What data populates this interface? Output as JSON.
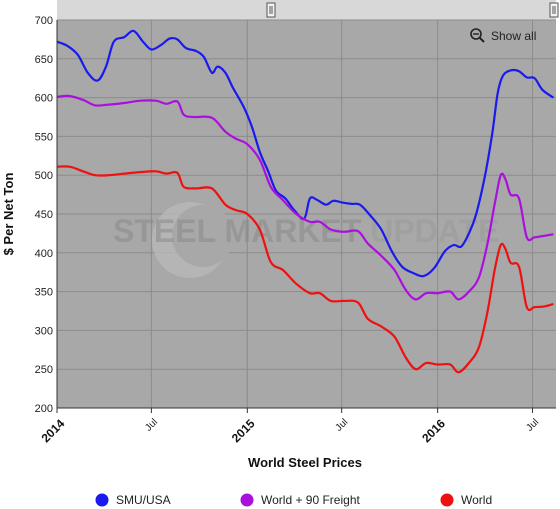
{
  "chart_data": {
    "type": "line",
    "title": "",
    "xlabel": "World Steel Prices",
    "ylabel": "$ Per Net Ton",
    "ylim": [
      200,
      700
    ],
    "yticks": [
      200,
      250,
      300,
      350,
      400,
      450,
      500,
      550,
      600,
      650,
      700
    ],
    "xlim": [
      "2014-01-01",
      "2016-08-15"
    ],
    "xticks": [
      {
        "date": "2014-01-01",
        "label": "2014",
        "major": true
      },
      {
        "date": "2014-07-01",
        "label": "Jul",
        "major": false
      },
      {
        "date": "2015-01-01",
        "label": "2015",
        "major": true
      },
      {
        "date": "2015-07-01",
        "label": "Jul",
        "major": false
      },
      {
        "date": "2016-01-01",
        "label": "2016",
        "major": true
      },
      {
        "date": "2016-07-01",
        "label": "Jul",
        "major": false
      }
    ],
    "grid": true,
    "legend_position": "bottom",
    "watermark": "STEEL MARKET UPDATE",
    "show_all_label": "Show all",
    "plot_background": "#a8a8a8",
    "series": [
      {
        "name": "SMU/USA",
        "color": "#1a1aee",
        "points": [
          [
            "2014-01-01",
            672
          ],
          [
            "2014-01-20",
            667
          ],
          [
            "2014-02-10",
            655
          ],
          [
            "2014-03-01",
            632
          ],
          [
            "2014-03-20",
            622
          ],
          [
            "2014-04-05",
            640
          ],
          [
            "2014-04-20",
            672
          ],
          [
            "2014-05-10",
            678
          ],
          [
            "2014-05-28",
            686
          ],
          [
            "2014-06-15",
            672
          ],
          [
            "2014-07-01",
            662
          ],
          [
            "2014-07-20",
            668
          ],
          [
            "2014-08-05",
            676
          ],
          [
            "2014-08-20",
            675
          ],
          [
            "2014-09-05",
            664
          ],
          [
            "2014-09-25",
            660
          ],
          [
            "2014-10-10",
            652
          ],
          [
            "2014-10-25",
            632
          ],
          [
            "2014-11-05",
            640
          ],
          [
            "2014-11-20",
            632
          ],
          [
            "2014-12-05",
            612
          ],
          [
            "2014-12-25",
            588
          ],
          [
            "2015-01-10",
            562
          ],
          [
            "2015-01-25",
            530
          ],
          [
            "2015-02-10",
            505
          ],
          [
            "2015-02-25",
            480
          ],
          [
            "2015-03-15",
            470
          ],
          [
            "2015-04-01",
            455
          ],
          [
            "2015-04-20",
            444
          ],
          [
            "2015-05-01",
            470
          ],
          [
            "2015-05-15",
            468
          ],
          [
            "2015-06-01",
            462
          ],
          [
            "2015-06-15",
            467
          ],
          [
            "2015-07-01",
            465
          ],
          [
            "2015-07-20",
            463
          ],
          [
            "2015-08-05",
            462
          ],
          [
            "2015-08-25",
            448
          ],
          [
            "2015-09-15",
            430
          ],
          [
            "2015-10-05",
            402
          ],
          [
            "2015-10-25",
            382
          ],
          [
            "2015-11-15",
            374
          ],
          [
            "2015-12-05",
            370
          ],
          [
            "2015-12-25",
            380
          ],
          [
            "2016-01-15",
            402
          ],
          [
            "2016-02-01",
            410
          ],
          [
            "2016-02-15",
            408
          ],
          [
            "2016-03-01",
            425
          ],
          [
            "2016-03-15",
            450
          ],
          [
            "2016-04-01",
            500
          ],
          [
            "2016-04-15",
            555
          ],
          [
            "2016-04-25",
            605
          ],
          [
            "2016-05-05",
            628
          ],
          [
            "2016-05-20",
            635
          ],
          [
            "2016-06-05",
            634
          ],
          [
            "2016-06-20",
            626
          ],
          [
            "2016-07-05",
            625
          ],
          [
            "2016-07-20",
            610
          ],
          [
            "2016-08-10",
            600
          ]
        ]
      },
      {
        "name": "World + 90 Freight",
        "color": "#aa10dd",
        "points": [
          [
            "2014-01-01",
            601
          ],
          [
            "2014-01-25",
            602
          ],
          [
            "2014-02-20",
            597
          ],
          [
            "2014-03-15",
            590
          ],
          [
            "2014-04-10",
            591
          ],
          [
            "2014-05-10",
            593
          ],
          [
            "2014-06-10",
            596
          ],
          [
            "2014-07-10",
            596
          ],
          [
            "2014-07-30",
            592
          ],
          [
            "2014-08-20",
            595
          ],
          [
            "2014-09-01",
            578
          ],
          [
            "2014-09-20",
            575
          ],
          [
            "2014-10-25",
            574
          ],
          [
            "2014-11-20",
            556
          ],
          [
            "2014-12-10",
            547
          ],
          [
            "2015-01-01",
            540
          ],
          [
            "2015-01-25",
            520
          ],
          [
            "2015-02-15",
            485
          ],
          [
            "2015-03-10",
            468
          ],
          [
            "2015-04-05",
            450
          ],
          [
            "2015-05-01",
            440
          ],
          [
            "2015-05-20",
            440
          ],
          [
            "2015-06-10",
            430
          ],
          [
            "2015-07-05",
            427
          ],
          [
            "2015-08-01",
            428
          ],
          [
            "2015-08-20",
            412
          ],
          [
            "2015-09-15",
            396
          ],
          [
            "2015-10-10",
            378
          ],
          [
            "2015-11-01",
            352
          ],
          [
            "2015-11-20",
            340
          ],
          [
            "2015-12-10",
            348
          ],
          [
            "2016-01-01",
            348
          ],
          [
            "2016-01-25",
            350
          ],
          [
            "2016-02-10",
            340
          ],
          [
            "2016-03-01",
            350
          ],
          [
            "2016-03-20",
            368
          ],
          [
            "2016-04-05",
            410
          ],
          [
            "2016-04-20",
            465
          ],
          [
            "2016-05-01",
            500
          ],
          [
            "2016-05-10",
            495
          ],
          [
            "2016-05-20",
            475
          ],
          [
            "2016-06-05",
            470
          ],
          [
            "2016-06-20",
            420
          ],
          [
            "2016-07-05",
            420
          ],
          [
            "2016-07-25",
            422
          ],
          [
            "2016-08-10",
            424
          ]
        ]
      },
      {
        "name": "World",
        "color": "#ee1111",
        "points": [
          [
            "2014-01-01",
            511
          ],
          [
            "2014-01-25",
            511
          ],
          [
            "2014-02-20",
            505
          ],
          [
            "2014-03-15",
            500
          ],
          [
            "2014-04-10",
            500
          ],
          [
            "2014-05-10",
            502
          ],
          [
            "2014-06-10",
            504
          ],
          [
            "2014-07-10",
            505
          ],
          [
            "2014-07-30",
            502
          ],
          [
            "2014-08-20",
            503
          ],
          [
            "2014-09-01",
            485
          ],
          [
            "2014-09-25",
            483
          ],
          [
            "2014-10-25",
            483
          ],
          [
            "2014-11-20",
            462
          ],
          [
            "2014-12-10",
            455
          ],
          [
            "2015-01-01",
            450
          ],
          [
            "2015-01-25",
            430
          ],
          [
            "2015-02-15",
            388
          ],
          [
            "2015-03-10",
            378
          ],
          [
            "2015-04-05",
            360
          ],
          [
            "2015-05-01",
            348
          ],
          [
            "2015-05-20",
            348
          ],
          [
            "2015-06-10",
            338
          ],
          [
            "2015-07-05",
            338
          ],
          [
            "2015-08-01",
            336
          ],
          [
            "2015-08-20",
            315
          ],
          [
            "2015-09-15",
            305
          ],
          [
            "2015-10-10",
            292
          ],
          [
            "2015-11-01",
            265
          ],
          [
            "2015-11-20",
            250
          ],
          [
            "2015-12-10",
            258
          ],
          [
            "2016-01-01",
            256
          ],
          [
            "2016-01-25",
            256
          ],
          [
            "2016-02-10",
            246
          ],
          [
            "2016-03-01",
            258
          ],
          [
            "2016-03-20",
            278
          ],
          [
            "2016-04-05",
            322
          ],
          [
            "2016-04-20",
            380
          ],
          [
            "2016-05-01",
            410
          ],
          [
            "2016-05-10",
            405
          ],
          [
            "2016-05-20",
            387
          ],
          [
            "2016-06-05",
            382
          ],
          [
            "2016-06-20",
            330
          ],
          [
            "2016-07-05",
            330
          ],
          [
            "2016-07-25",
            331
          ],
          [
            "2016-08-10",
            334
          ]
        ]
      }
    ]
  }
}
